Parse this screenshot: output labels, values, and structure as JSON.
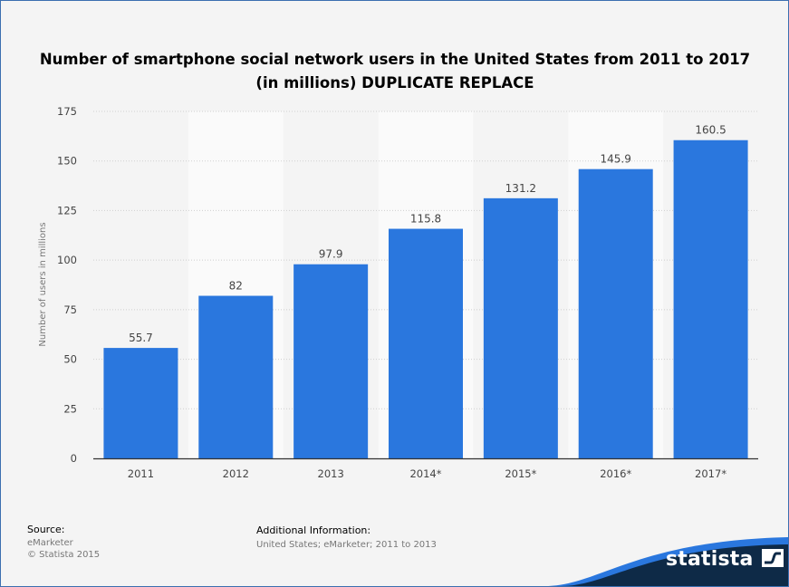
{
  "title": "Number of smartphone social network users in the United States from 2011 to 2017 (in millions) DUPLICATE REPLACE",
  "source": {
    "heading": "Source:",
    "line1": "eMarketer",
    "line2": "© Statista 2015"
  },
  "additional": {
    "heading": "Additional Information:",
    "text": "United States; eMarketer; 2011 to 2013"
  },
  "logo": {
    "text": "statista",
    "icon": "statista-flag-icon"
  },
  "colors": {
    "bar": "#2a77de",
    "background": "#f4f4f4",
    "band": "#fafafa",
    "logo_bg": "#0e2a47",
    "accent": "#2a77de"
  },
  "chart_data": {
    "type": "bar",
    "title": "Number of smartphone social network users in the United States from 2011 to 2017 (in millions) DUPLICATE REPLACE",
    "xlabel": "",
    "ylabel": "Number of users in millions",
    "categories": [
      "2011",
      "2012",
      "2013",
      "2014*",
      "2015*",
      "2016*",
      "2017*"
    ],
    "values": [
      55.7,
      82,
      97.9,
      115.8,
      131.2,
      145.9,
      160.5
    ],
    "value_labels": [
      "55.7",
      "82",
      "97.9",
      "115.8",
      "131.2",
      "145.9",
      "160.5"
    ],
    "ylim": [
      0,
      175
    ],
    "yticks": [
      0,
      25,
      50,
      75,
      100,
      125,
      150,
      175
    ],
    "grid": true,
    "legend": "none"
  }
}
